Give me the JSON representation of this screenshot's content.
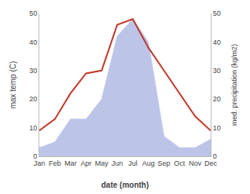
{
  "chart_data": {
    "type": "line",
    "xlabel": "date (month)",
    "ylabel": "max temp (C)",
    "y2label": "med. precipitation (kg/m2)",
    "categories": [
      "Jan",
      "Feb",
      "Mar",
      "Apr",
      "May",
      "Jun",
      "Jul",
      "Aug",
      "Sep",
      "Oct",
      "Nov",
      "Dec"
    ],
    "series": [
      {
        "type": "area",
        "axis": "y2",
        "color": "#bcc5e8",
        "values": [
          3,
          5,
          13,
          13,
          20,
          42,
          48,
          40,
          7,
          3,
          3,
          6
        ]
      },
      {
        "type": "line",
        "color": "#c0392b",
        "values": [
          9,
          13,
          22,
          29,
          30,
          46,
          48,
          38,
          30,
          22,
          14,
          9
        ]
      }
    ],
    "ylim": [
      0,
      50
    ],
    "yticks": [
      0,
      10,
      20,
      30,
      40,
      50
    ],
    "y2lim": [
      0,
      50
    ],
    "y2ticks": [
      0,
      10,
      20,
      30,
      40,
      50
    ],
    "grid": false
  }
}
